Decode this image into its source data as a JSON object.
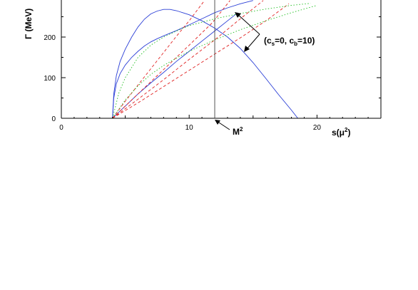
{
  "chart_data": {
    "type": "line",
    "xlabel": "s(μ²)",
    "ylabel": "Γ (MeV)",
    "xlim": [
      0,
      25
    ],
    "ylim": [
      0,
      290
    ],
    "x_ticks": [
      0,
      10,
      20
    ],
    "y_ticks": [
      0,
      100,
      200
    ],
    "grid": false,
    "threshold": 4,
    "vertical_marker": {
      "x": 12,
      "label": "M²"
    },
    "annotation": "(c=0, c=10)",
    "annotation_sub": [
      "s",
      "b"
    ],
    "series": [
      {
        "style": "blue-solid",
        "color": "#2b3fd6",
        "dash": "",
        "x": [
          4,
          4.1,
          4.3,
          4.6,
          5.0,
          5.5,
          6.0,
          6.5,
          7.0,
          7.5,
          8.0,
          8.5,
          9.0,
          9.5,
          10,
          11,
          12,
          13,
          14,
          15,
          16,
          17,
          18,
          18.5
        ],
        "y": [
          0,
          60,
          105,
          140,
          170,
          200,
          225,
          244,
          257,
          264,
          268,
          268,
          265,
          260,
          255,
          240,
          222,
          200,
          172,
          137,
          98,
          58,
          20,
          0
        ]
      },
      {
        "style": "blue-solid",
        "color": "#2b3fd6",
        "dash": "",
        "x": [
          4,
          4.1,
          4.3,
          4.6,
          5.0,
          5.5,
          6.0,
          6.5,
          7.0,
          7.5,
          8.0,
          9.0,
          10,
          11,
          12,
          13,
          14,
          15
        ],
        "y": [
          0,
          50,
          85,
          110,
          131,
          150,
          165,
          178,
          188,
          196,
          203,
          216,
          230,
          245,
          260,
          272,
          282,
          290
        ]
      },
      {
        "style": "blue-solid",
        "color": "#2b3fd6",
        "dash": "",
        "x": [
          4,
          4.5,
          5,
          6,
          7,
          8,
          9,
          10,
          11,
          12,
          13,
          13.8
        ],
        "y": [
          0,
          15,
          30,
          60,
          87,
          113,
          140,
          165,
          190,
          215,
          240,
          260
        ]
      },
      {
        "style": "red-dashed",
        "color": "#e02020",
        "dash": "4,3",
        "x": [
          4,
          5,
          6,
          7,
          8,
          9,
          10,
          11.2
        ],
        "y": [
          0,
          42,
          82,
          122,
          162,
          202,
          240,
          290
        ]
      },
      {
        "style": "red-dashed",
        "color": "#e02020",
        "dash": "4,3",
        "x": [
          4,
          6,
          8,
          10,
          11.8,
          13.2
        ],
        "y": [
          0,
          60,
          120,
          180,
          235,
          290
        ]
      },
      {
        "style": "red-dashed",
        "color": "#e02020",
        "dash": "4,3",
        "x": [
          4,
          6,
          8,
          10,
          12,
          14,
          15.8
        ],
        "y": [
          0,
          47,
          95,
          145,
          193,
          245,
          290
        ]
      },
      {
        "style": "red-dashed",
        "color": "#e02020",
        "dash": "4,3",
        "x": [
          4,
          6,
          8,
          10,
          12,
          14,
          16,
          17.8
        ],
        "y": [
          0,
          38,
          78,
          118,
          158,
          198,
          240,
          282
        ]
      },
      {
        "style": "green-dotted",
        "color": "#22c022",
        "dash": "1.5,2.5",
        "x": [
          4,
          4.5,
          5,
          6,
          7,
          8,
          9,
          10,
          12,
          14,
          16,
          18,
          19.5
        ],
        "y": [
          0,
          62,
          100,
          150,
          180,
          200,
          215,
          228,
          245,
          258,
          269,
          278,
          283
        ]
      },
      {
        "style": "green-dotted",
        "color": "#22c022",
        "dash": "1.5,2.5",
        "x": [
          4,
          5,
          6,
          7,
          8,
          9,
          10,
          12,
          14,
          16,
          18,
          20
        ],
        "y": [
          0,
          45,
          80,
          108,
          130,
          148,
          165,
          193,
          218,
          240,
          260,
          278
        ]
      }
    ]
  }
}
